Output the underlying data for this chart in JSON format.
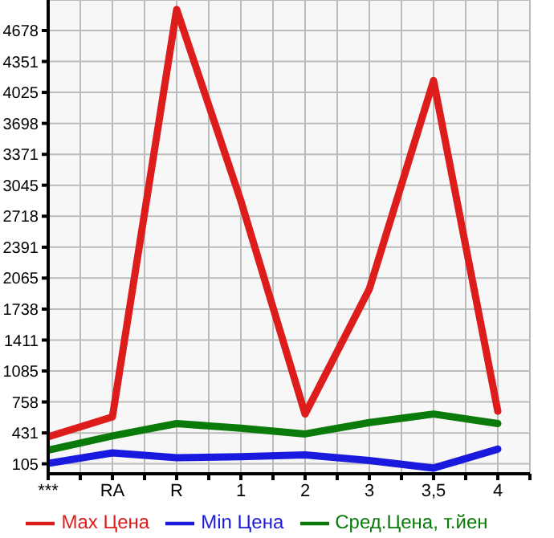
{
  "chart_data": {
    "type": "line",
    "categories": [
      "***",
      "RA",
      "R",
      "1",
      "2",
      "3",
      "3,5",
      "4"
    ],
    "series": [
      {
        "name": "Max Цена",
        "color": "#dd1c1c",
        "values": [
          390,
          600,
          4900,
          2880,
          630,
          1950,
          4150,
          660
        ]
      },
      {
        "name": "Min Цена",
        "color": "#1a1adf",
        "values": [
          110,
          220,
          170,
          180,
          200,
          140,
          60,
          260
        ]
      },
      {
        "name": "Сред.Цена, т.йен",
        "color": "#0a7a0a",
        "values": [
          250,
          400,
          530,
          480,
          420,
          540,
          630,
          530
        ]
      }
    ],
    "ylim": [
      0,
      5000
    ],
    "yticks": [
      105,
      431,
      758,
      1085,
      1411,
      1738,
      2065,
      2391,
      2718,
      3045,
      3371,
      3698,
      4025,
      4351,
      4678
    ],
    "grid": true,
    "legend": "bottom",
    "marker": "none",
    "line_style": "solid"
  }
}
